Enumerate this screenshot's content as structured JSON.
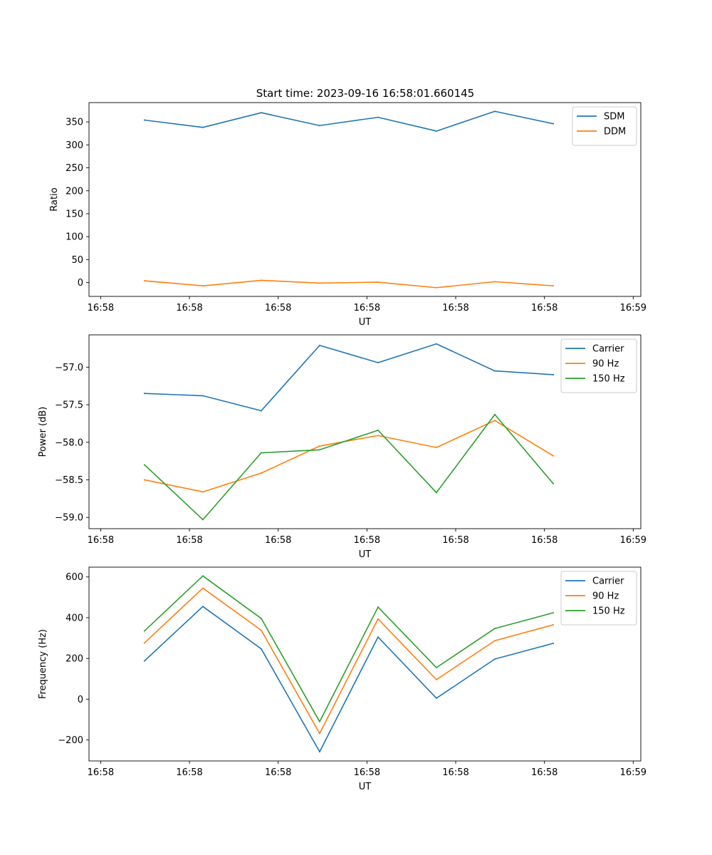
{
  "figure_title": "Start time: 2023-09-16 16:58:01.660145",
  "colors": {
    "blue": "#1f77b4",
    "orange": "#ff7f0e",
    "green": "#2ca02c"
  },
  "chart_data": [
    {
      "type": "line",
      "title": "Start time: 2023-09-16 16:58:01.660145",
      "xlabel": "UT",
      "ylabel": "Ratio",
      "x": [
        1,
        2,
        3,
        4,
        5,
        6,
        7,
        8
      ],
      "xlim": [
        0.05,
        9.5
      ],
      "xtick_values": [
        0.25,
        1.77,
        3.29,
        4.81,
        6.33,
        7.85,
        9.37
      ],
      "xtick_labels": [
        "16:58",
        "16:58",
        "16:58",
        "16:58",
        "16:58",
        "16:58",
        "16:59"
      ],
      "ylim": [
        -30,
        392
      ],
      "yticks": [
        0,
        50,
        100,
        150,
        200,
        250,
        300,
        350
      ],
      "ytick_labels": [
        "0",
        "50",
        "100",
        "150",
        "200",
        "250",
        "300",
        "350"
      ],
      "legend_position": "top-right",
      "series": [
        {
          "name": "SDM",
          "color": "#1f77b4",
          "values": [
            354,
            338,
            370,
            342,
            360,
            330,
            373,
            346
          ]
        },
        {
          "name": "DDM",
          "color": "#ff7f0e",
          "values": [
            4,
            -7,
            5,
            -1,
            1,
            -11,
            2,
            -7
          ]
        }
      ]
    },
    {
      "type": "line",
      "title": "",
      "xlabel": "UT",
      "ylabel": "Power (dB)",
      "x": [
        1,
        2,
        3,
        4,
        5,
        6,
        7,
        8
      ],
      "xlim": [
        0.05,
        9.5
      ],
      "xtick_values": [
        0.25,
        1.77,
        3.29,
        4.81,
        6.33,
        7.85,
        9.37
      ],
      "xtick_labels": [
        "16:58",
        "16:58",
        "16:58",
        "16:58",
        "16:58",
        "16:58",
        "16:59"
      ],
      "ylim": [
        -59.15,
        -56.57
      ],
      "yticks": [
        -59.0,
        -58.5,
        -58.0,
        -57.5,
        -57.0
      ],
      "ytick_labels": [
        "−59.0",
        "−58.5",
        "−58.0",
        "−57.5",
        "−57.0"
      ],
      "legend_position": "top-right",
      "series": [
        {
          "name": "Carrier",
          "color": "#1f77b4",
          "values": [
            -57.35,
            -57.38,
            -57.58,
            -56.71,
            -56.94,
            -56.69,
            -57.05,
            -57.1
          ]
        },
        {
          "name": "90 Hz",
          "color": "#ff7f0e",
          "values": [
            -58.5,
            -58.66,
            -58.41,
            -58.05,
            -57.91,
            -58.07,
            -57.71,
            -58.18
          ]
        },
        {
          "name": "150 Hz",
          "color": "#2ca02c",
          "values": [
            -58.3,
            -59.03,
            -58.14,
            -58.1,
            -57.84,
            -58.67,
            -57.63,
            -58.55
          ]
        }
      ]
    },
    {
      "type": "line",
      "title": "",
      "xlabel": "UT",
      "ylabel": "Frequency (Hz)",
      "x": [
        1,
        2,
        3,
        4,
        5,
        6,
        7,
        8
      ],
      "xlim": [
        0.05,
        9.5
      ],
      "xtick_values": [
        0.25,
        1.77,
        3.29,
        4.81,
        6.33,
        7.85,
        9.37
      ],
      "xtick_labels": [
        "16:58",
        "16:58",
        "16:58",
        "16:58",
        "16:58",
        "16:58",
        "16:59"
      ],
      "ylim": [
        -303,
        648
      ],
      "yticks": [
        -200,
        0,
        200,
        400,
        600
      ],
      "ytick_labels": [
        "−200",
        "0",
        "200",
        "400",
        "600"
      ],
      "legend_position": "top-right",
      "series": [
        {
          "name": "Carrier",
          "color": "#1f77b4",
          "values": [
            188,
            455,
            247,
            -258,
            305,
            5,
            197,
            274
          ]
        },
        {
          "name": "90 Hz",
          "color": "#ff7f0e",
          "values": [
            276,
            545,
            338,
            -168,
            394,
            96,
            287,
            365
          ]
        },
        {
          "name": "150 Hz",
          "color": "#2ca02c",
          "values": [
            335,
            605,
            396,
            -110,
            452,
            155,
            347,
            424
          ]
        }
      ]
    }
  ]
}
